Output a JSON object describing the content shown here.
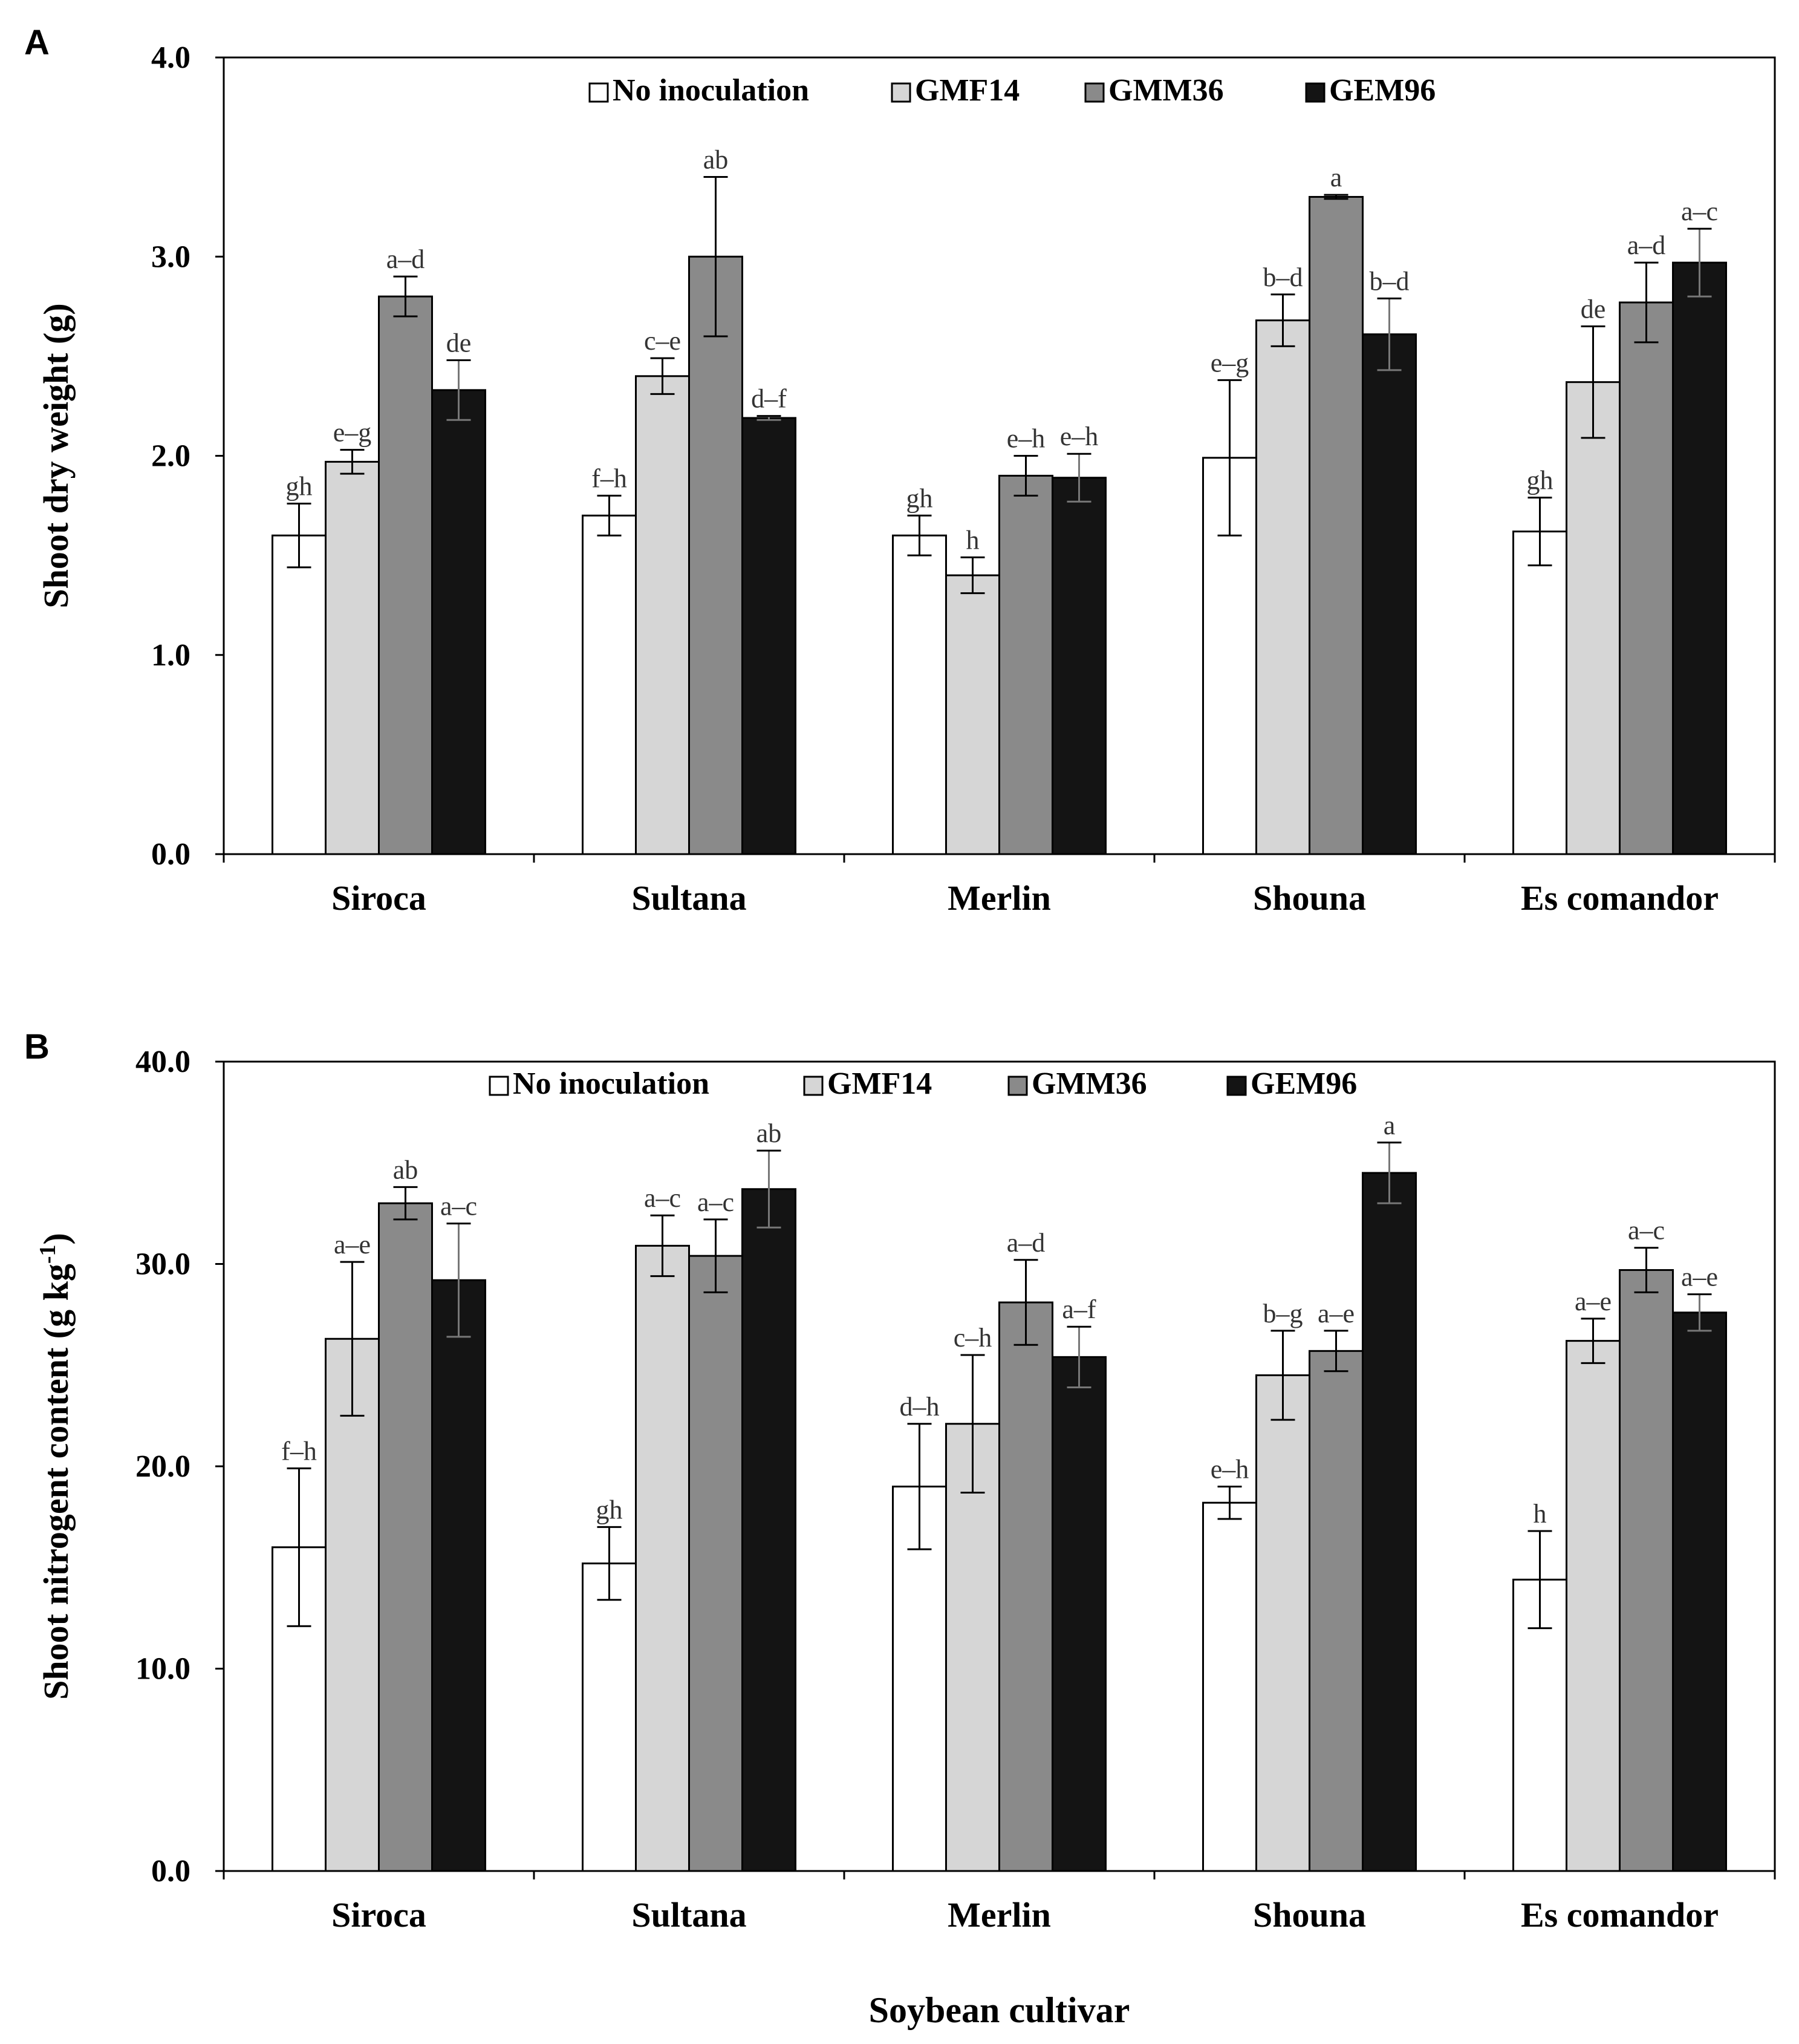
{
  "chart_data": [
    {
      "type": "bar",
      "panel_label": "A",
      "ylabel": "Shoot dry weight (g)",
      "xlabel": "",
      "ylim": [
        0,
        4
      ],
      "yticks": [
        "0.0",
        "1.0",
        "2.0",
        "3.0",
        "4.0"
      ],
      "categories": [
        "Siroca",
        "Sultana",
        "Merlin",
        "Shouna",
        "Es comandor"
      ],
      "legend": [
        "No inoculation",
        "GMF14",
        "GMM36",
        "GEM96"
      ],
      "series": [
        {
          "name": "No inoculation",
          "values": [
            1.6,
            1.7,
            1.6,
            1.99,
            1.62
          ],
          "errors": [
            0.16,
            0.1,
            0.1,
            0.39,
            0.17
          ],
          "letters": [
            "gh",
            "f–h",
            "gh",
            "e–g",
            "gh"
          ]
        },
        {
          "name": "GMF14",
          "values": [
            1.97,
            2.4,
            1.4,
            2.68,
            2.37
          ],
          "errors": [
            0.06,
            0.09,
            0.09,
            0.13,
            0.28
          ],
          "letters": [
            "e–g",
            "c–e",
            "h",
            "b–d",
            "de"
          ]
        },
        {
          "name": "GMM36",
          "values": [
            2.8,
            3.0,
            1.9,
            3.3,
            2.77
          ],
          "errors": [
            0.1,
            0.4,
            0.1,
            0.01,
            0.2
          ],
          "letters": [
            "a–d",
            "ab",
            "e–h",
            "a",
            "a–d"
          ]
        },
        {
          "name": "GEM96",
          "values": [
            2.33,
            2.19,
            1.89,
            2.61,
            2.97
          ],
          "errors": [
            0.15,
            0.01,
            0.12,
            0.18,
            0.17
          ],
          "letters": [
            "de",
            "d–f",
            "e–h",
            "b–d",
            "a–c"
          ]
        }
      ]
    },
    {
      "type": "bar",
      "panel_label": "B",
      "ylabel": "Shoot nitrogent content (g kg",
      "ylabel_sup": "-1",
      "ylabel_end": ")",
      "xlabel": "Soybean cultivar",
      "ylim": [
        0,
        40
      ],
      "yticks": [
        "0.0",
        "10.0",
        "20.0",
        "30.0",
        "40.0"
      ],
      "categories": [
        "Siroca",
        "Sultana",
        "Merlin",
        "Shouna",
        "Es comandor"
      ],
      "legend": [
        "No inoculation",
        "GMF14",
        "GMM36",
        "GEM96"
      ],
      "series": [
        {
          "name": "No inoculation",
          "values": [
            16.0,
            15.2,
            19.0,
            18.2,
            14.4
          ],
          "errors": [
            3.9,
            1.8,
            3.1,
            0.8,
            2.4
          ],
          "letters": [
            "f–h",
            "gh",
            "d–h",
            "e–h",
            "h"
          ]
        },
        {
          "name": "GMF14",
          "values": [
            26.3,
            30.9,
            22.1,
            24.5,
            26.2
          ],
          "errors": [
            3.8,
            1.5,
            3.4,
            2.2,
            1.1
          ],
          "letters": [
            "a–e",
            "a–c",
            "c–h",
            "b–g",
            "a–e"
          ]
        },
        {
          "name": "GMM36",
          "values": [
            33.0,
            30.4,
            28.1,
            25.7,
            29.7
          ],
          "errors": [
            0.8,
            1.8,
            2.1,
            1.0,
            1.1
          ],
          "letters": [
            "ab",
            "a–c",
            "a–d",
            "a–e",
            "a–c"
          ]
        },
        {
          "name": "GEM96",
          "values": [
            29.2,
            33.7,
            25.4,
            34.5,
            27.6
          ],
          "errors": [
            2.8,
            1.9,
            1.5,
            1.5,
            0.9
          ],
          "letters": [
            "a–c",
            "ab",
            "a–f",
            "a",
            "a–e"
          ]
        }
      ]
    }
  ],
  "colors": {
    "No inoculation": "#ffffff",
    "GMF14": "#d6d6d6",
    "GMM36": "#8a8a8a",
    "GEM96": "#141414",
    "axis": "#000000",
    "letters": "#333333"
  }
}
